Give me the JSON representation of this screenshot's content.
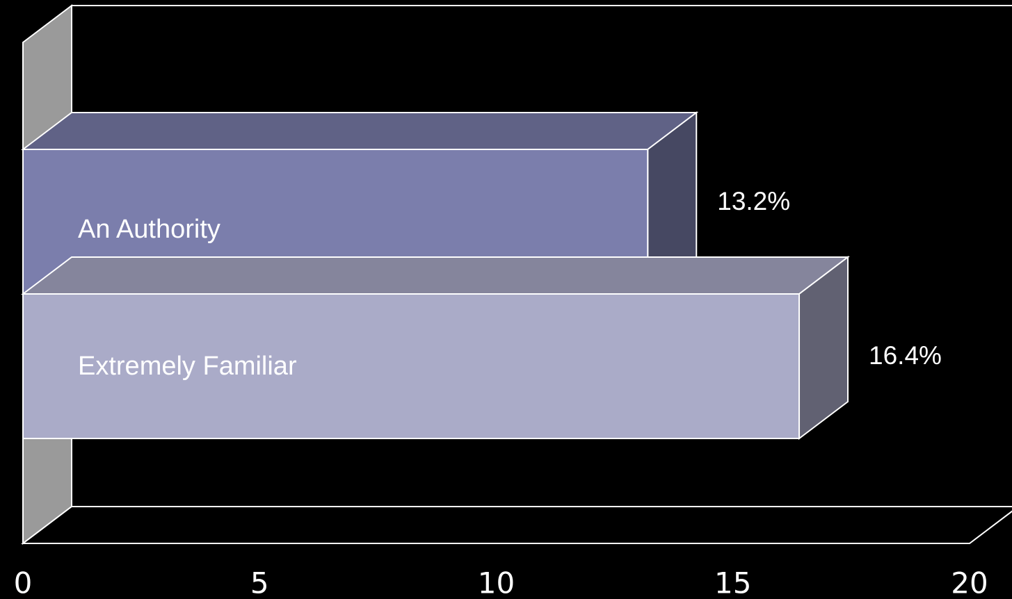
{
  "chart_data": {
    "type": "bar",
    "orientation": "horizontal",
    "style": "3d",
    "title": "",
    "xlabel": "",
    "ylabel": "",
    "xlim": [
      0,
      20
    ],
    "x_ticks": [
      "0",
      "5",
      "10",
      "15",
      "20"
    ],
    "categories": [
      "An Authority",
      "Extremely Familiar"
    ],
    "values": [
      13.2,
      16.4
    ],
    "data_labels": [
      "13.2%",
      "16.4%"
    ],
    "grid": false,
    "legend": "none",
    "colors": {
      "background": "#000000",
      "wall_side": "#9a9a9a",
      "bars": [
        "#7b7eac",
        "#aaabc8"
      ]
    }
  }
}
